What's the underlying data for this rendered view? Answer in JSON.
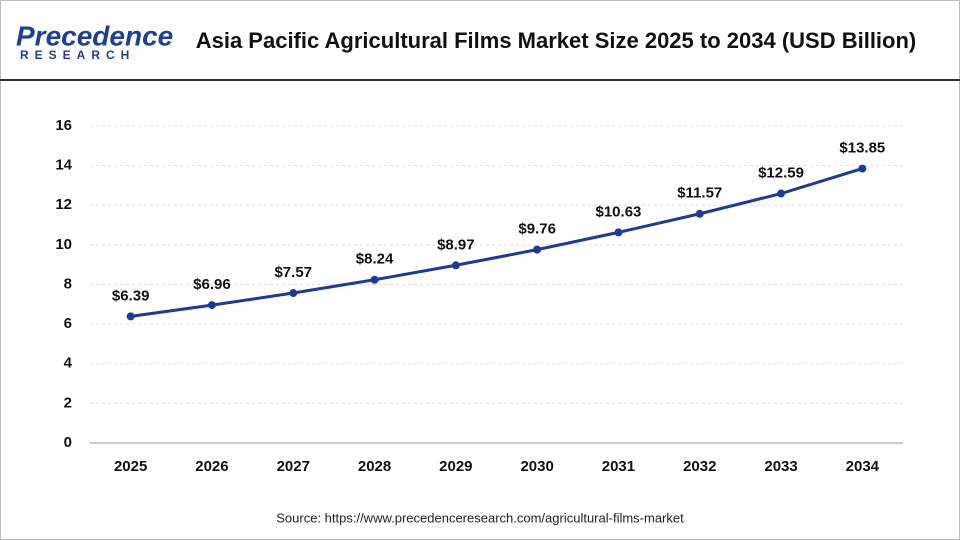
{
  "logo": {
    "name": "Precedence",
    "tagline": "RESEARCH"
  },
  "chart_data": {
    "type": "line",
    "title": "Asia Pacific Agricultural Films Market Size 2025 to 2034 (USD Billion)",
    "categories": [
      "2025",
      "2026",
      "2027",
      "2028",
      "2029",
      "2030",
      "2031",
      "2032",
      "2033",
      "2034"
    ],
    "values": [
      6.39,
      6.96,
      7.57,
      8.24,
      8.97,
      9.76,
      10.63,
      11.57,
      12.59,
      13.85
    ],
    "value_labels": [
      "$6.39",
      "$6.96",
      "$7.57",
      "$8.24",
      "$8.97",
      "$9.76",
      "$10.63",
      "$11.57",
      "$12.59",
      "$13.85"
    ],
    "color": "#1f3a93",
    "ylim": [
      0,
      16
    ],
    "yticks": [
      0,
      2,
      4,
      6,
      8,
      10,
      12,
      14,
      16
    ],
    "grid": true,
    "source": "Source: https://www.precedenceresearch.com/agricultural-films-market"
  }
}
